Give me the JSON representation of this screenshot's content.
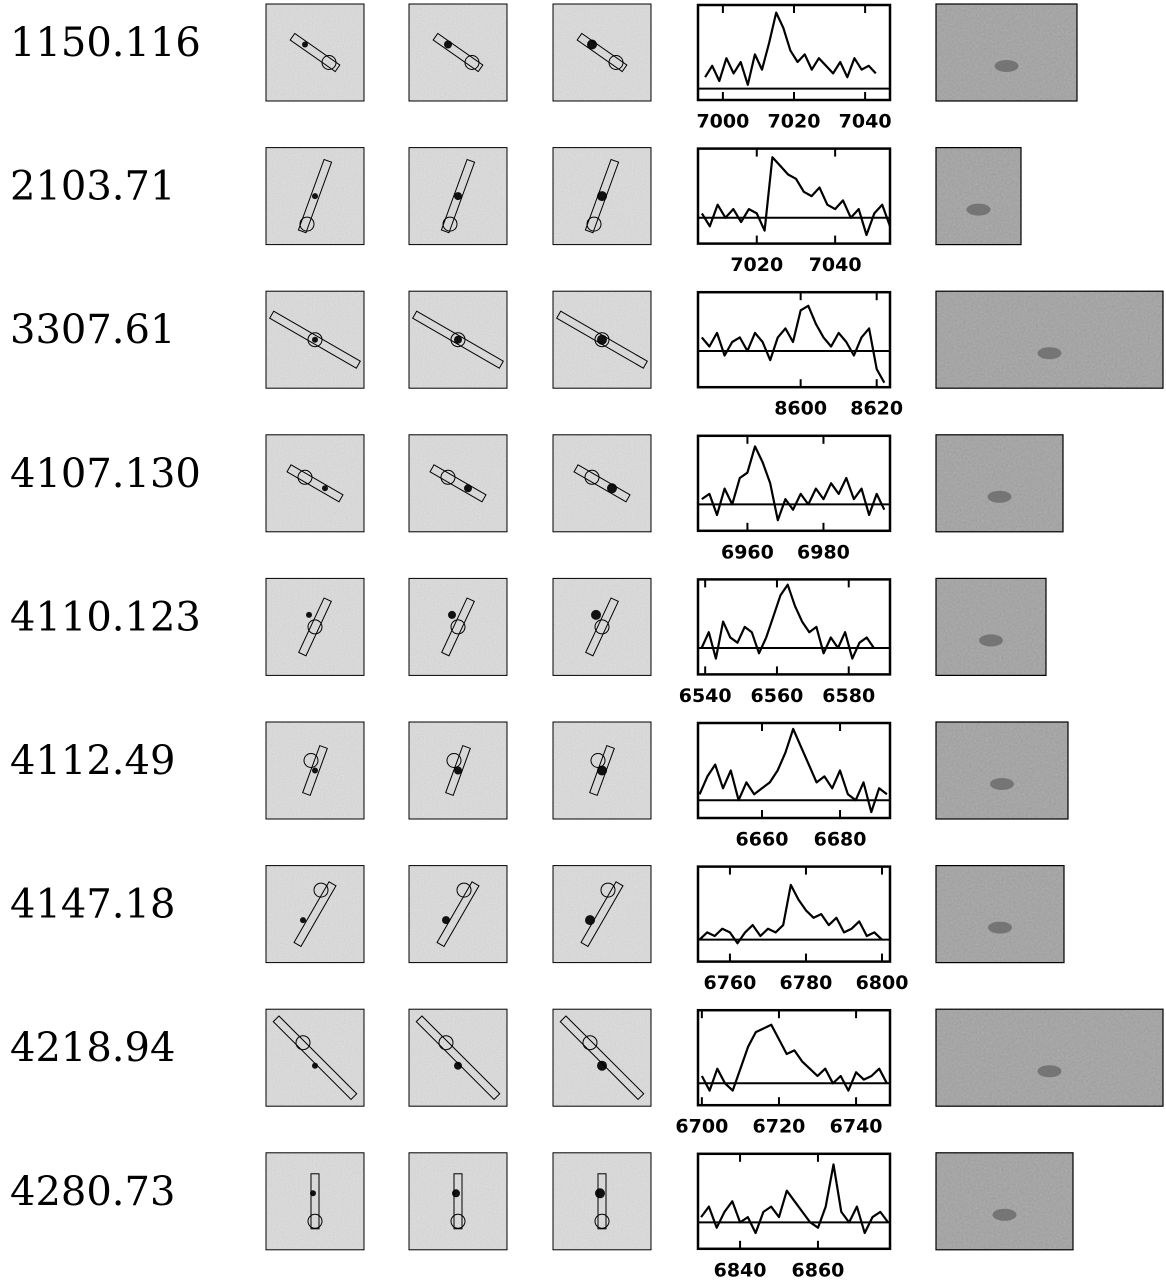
{
  "chart_data": [
    {
      "type": "line",
      "title": "1150.116",
      "xlim": [
        6993,
        7047
      ],
      "ylim": [
        -0.3,
        2.2
      ],
      "xticks": [
        7000,
        7020,
        7040
      ],
      "x": [
        6995,
        6997,
        6999,
        7001,
        7003,
        7005,
        7007,
        7009,
        7011,
        7013,
        7015,
        7017,
        7019,
        7021,
        7023,
        7025,
        7027,
        7029,
        7031,
        7033,
        7035,
        7037,
        7039,
        7041,
        7043
      ],
      "values": [
        0.3,
        0.6,
        0.2,
        0.8,
        0.4,
        0.7,
        0.1,
        0.9,
        0.5,
        1.2,
        2.0,
        1.6,
        1.0,
        0.7,
        0.9,
        0.5,
        0.8,
        0.6,
        0.4,
        0.7,
        0.3,
        0.8,
        0.5,
        0.6,
        0.4
      ],
      "color": "#000000"
    },
    {
      "type": "line",
      "title": "2103.71",
      "xlim": [
        7005,
        7054
      ],
      "ylim": [
        -0.6,
        1.6
      ],
      "xticks": [
        7020,
        7040
      ],
      "x": [
        7006,
        7008,
        7010,
        7012,
        7014,
        7016,
        7018,
        7020,
        7022,
        7024,
        7026,
        7028,
        7030,
        7032,
        7034,
        7036,
        7038,
        7040,
        7042,
        7044,
        7046,
        7048,
        7050,
        7052,
        7054
      ],
      "values": [
        0.1,
        -0.2,
        0.3,
        0,
        0.2,
        -0.1,
        0.2,
        0.1,
        -0.3,
        1.4,
        1.2,
        1.0,
        0.9,
        0.6,
        0.5,
        0.7,
        0.3,
        0.2,
        0.4,
        0,
        0.2,
        -0.4,
        0.1,
        0.3,
        -0.2
      ],
      "color": "#000000"
    },
    {
      "type": "line",
      "title": "3307.61",
      "xlim": [
        8573,
        8623.5
      ],
      "ylim": [
        -0.8,
        1.3
      ],
      "xticks": [
        8600,
        8620
      ],
      "x": [
        8574,
        8576,
        8578,
        8580,
        8582,
        8584,
        8586,
        8588,
        8590,
        8592,
        8594,
        8596,
        8598,
        8600,
        8602,
        8604,
        8606,
        8608,
        8610,
        8612,
        8614,
        8616,
        8618,
        8620,
        8622
      ],
      "values": [
        0.3,
        0.1,
        0.4,
        -0.1,
        0.2,
        0.3,
        0,
        0.4,
        0.2,
        -0.2,
        0.3,
        0.5,
        0.2,
        0.9,
        1.0,
        0.6,
        0.3,
        0.1,
        0.4,
        0.2,
        -0.1,
        0.3,
        0.5,
        -0.4,
        -0.7
      ],
      "color": "#000000"
    },
    {
      "type": "line",
      "title": "4107.130",
      "xlim": [
        6947,
        6997.5
      ],
      "ylim": [
        -0.5,
        1.3
      ],
      "xticks": [
        6960,
        6980
      ],
      "x": [
        6948,
        6950,
        6952,
        6954,
        6956,
        6958,
        6960,
        6962,
        6964,
        6966,
        6968,
        6970,
        6972,
        6974,
        6976,
        6978,
        6980,
        6982,
        6984,
        6986,
        6988,
        6990,
        6992,
        6994,
        6996
      ],
      "values": [
        0.1,
        0.2,
        -0.2,
        0.3,
        0,
        0.5,
        0.6,
        1.1,
        0.8,
        0.4,
        -0.3,
        0.1,
        -0.1,
        0.2,
        0,
        0.3,
        0.1,
        0.4,
        0.2,
        0.5,
        0.1,
        0.3,
        -0.2,
        0.2,
        -0.1
      ],
      "color": "#000000"
    },
    {
      "type": "line",
      "title": "4110.123",
      "xlim": [
        6538,
        6591.5
      ],
      "ylim": [
        -0.5,
        1.3
      ],
      "xticks": [
        6540,
        6560,
        6580
      ],
      "x": [
        6539,
        6541,
        6543,
        6545,
        6547,
        6549,
        6551,
        6553,
        6555,
        6557,
        6559,
        6561,
        6563,
        6565,
        6567,
        6569,
        6571,
        6573,
        6575,
        6577,
        6579,
        6581,
        6583,
        6585,
        6587
      ],
      "values": [
        0,
        0.3,
        -0.2,
        0.5,
        0.2,
        0.1,
        0.4,
        0.3,
        -0.1,
        0.2,
        0.6,
        1.0,
        1.2,
        0.8,
        0.5,
        0.3,
        0.4,
        -0.1,
        0.2,
        0,
        0.3,
        -0.2,
        0.1,
        0.2,
        0
      ],
      "color": "#000000"
    },
    {
      "type": "line",
      "title": "4112.49",
      "xlim": [
        6643.6,
        6692.8
      ],
      "ylim": [
        -0.3,
        1.3
      ],
      "xticks": [
        6660,
        6680
      ],
      "x": [
        6644,
        6646,
        6648,
        6650,
        6652,
        6654,
        6656,
        6658,
        6660,
        6662,
        6664,
        6666,
        6668,
        6670,
        6672,
        6674,
        6676,
        6678,
        6680,
        6682,
        6684,
        6686,
        6688,
        6690,
        6692
      ],
      "values": [
        0.1,
        0.4,
        0.6,
        0.2,
        0.5,
        0,
        0.3,
        0.1,
        0.2,
        0.3,
        0.5,
        0.8,
        1.2,
        0.9,
        0.6,
        0.3,
        0.4,
        0.2,
        0.5,
        0.1,
        0,
        0.3,
        -0.2,
        0.2,
        0.1
      ],
      "color": "#000000"
    },
    {
      "type": "line",
      "title": "4147.18",
      "xlim": [
        6751.6,
        6802.1
      ],
      "ylim": [
        -0.3,
        1.0
      ],
      "xticks": [
        6760,
        6780,
        6800
      ],
      "x": [
        6752,
        6754,
        6756,
        6758,
        6760,
        6762,
        6764,
        6766,
        6768,
        6770,
        6772,
        6774,
        6776,
        6778,
        6780,
        6782,
        6784,
        6786,
        6788,
        6790,
        6792,
        6794,
        6796,
        6798,
        6800
      ],
      "values": [
        0,
        0.1,
        0.05,
        0.15,
        0.1,
        -0.05,
        0.1,
        0.2,
        0.05,
        0.15,
        0.1,
        0.2,
        0.75,
        0.55,
        0.4,
        0.3,
        0.35,
        0.2,
        0.3,
        0.1,
        0.15,
        0.25,
        0.05,
        0.1,
        0
      ],
      "color": "#000000"
    },
    {
      "type": "line",
      "title": "4218.94",
      "xlim": [
        6699,
        6748.8
      ],
      "ylim": [
        -0.3,
        1.0
      ],
      "xticks": [
        6700,
        6720,
        6740
      ],
      "x": [
        6700,
        6702,
        6704,
        6706,
        6708,
        6710,
        6712,
        6714,
        6716,
        6718,
        6720,
        6722,
        6724,
        6726,
        6728,
        6730,
        6732,
        6734,
        6736,
        6738,
        6740,
        6742,
        6744,
        6746,
        6748
      ],
      "values": [
        0.1,
        -0.1,
        0.2,
        0,
        -0.1,
        0.2,
        0.5,
        0.7,
        0.75,
        0.8,
        0.6,
        0.4,
        0.45,
        0.3,
        0.2,
        0.1,
        0.2,
        0,
        0.1,
        -0.1,
        0.15,
        0.05,
        0.1,
        0.2,
        0
      ],
      "color": "#000000"
    },
    {
      "type": "line",
      "title": "4280.73",
      "xlim": [
        6829.2,
        6878.5
      ],
      "ylim": [
        -0.5,
        1.3
      ],
      "xticks": [
        6840,
        6860
      ],
      "x": [
        6830,
        6832,
        6834,
        6836,
        6838,
        6840,
        6842,
        6844,
        6846,
        6848,
        6850,
        6852,
        6854,
        6856,
        6858,
        6860,
        6862,
        6864,
        6866,
        6868,
        6870,
        6872,
        6874,
        6876,
        6878
      ],
      "values": [
        0.1,
        0.3,
        -0.1,
        0.2,
        0.4,
        0,
        0.1,
        -0.2,
        0.2,
        0.3,
        0.1,
        0.6,
        0.4,
        0.2,
        0,
        -0.1,
        0.3,
        1.1,
        0.2,
        0,
        0.3,
        -0.2,
        0.1,
        0.2,
        0
      ],
      "color": "#000000"
    }
  ]
}
